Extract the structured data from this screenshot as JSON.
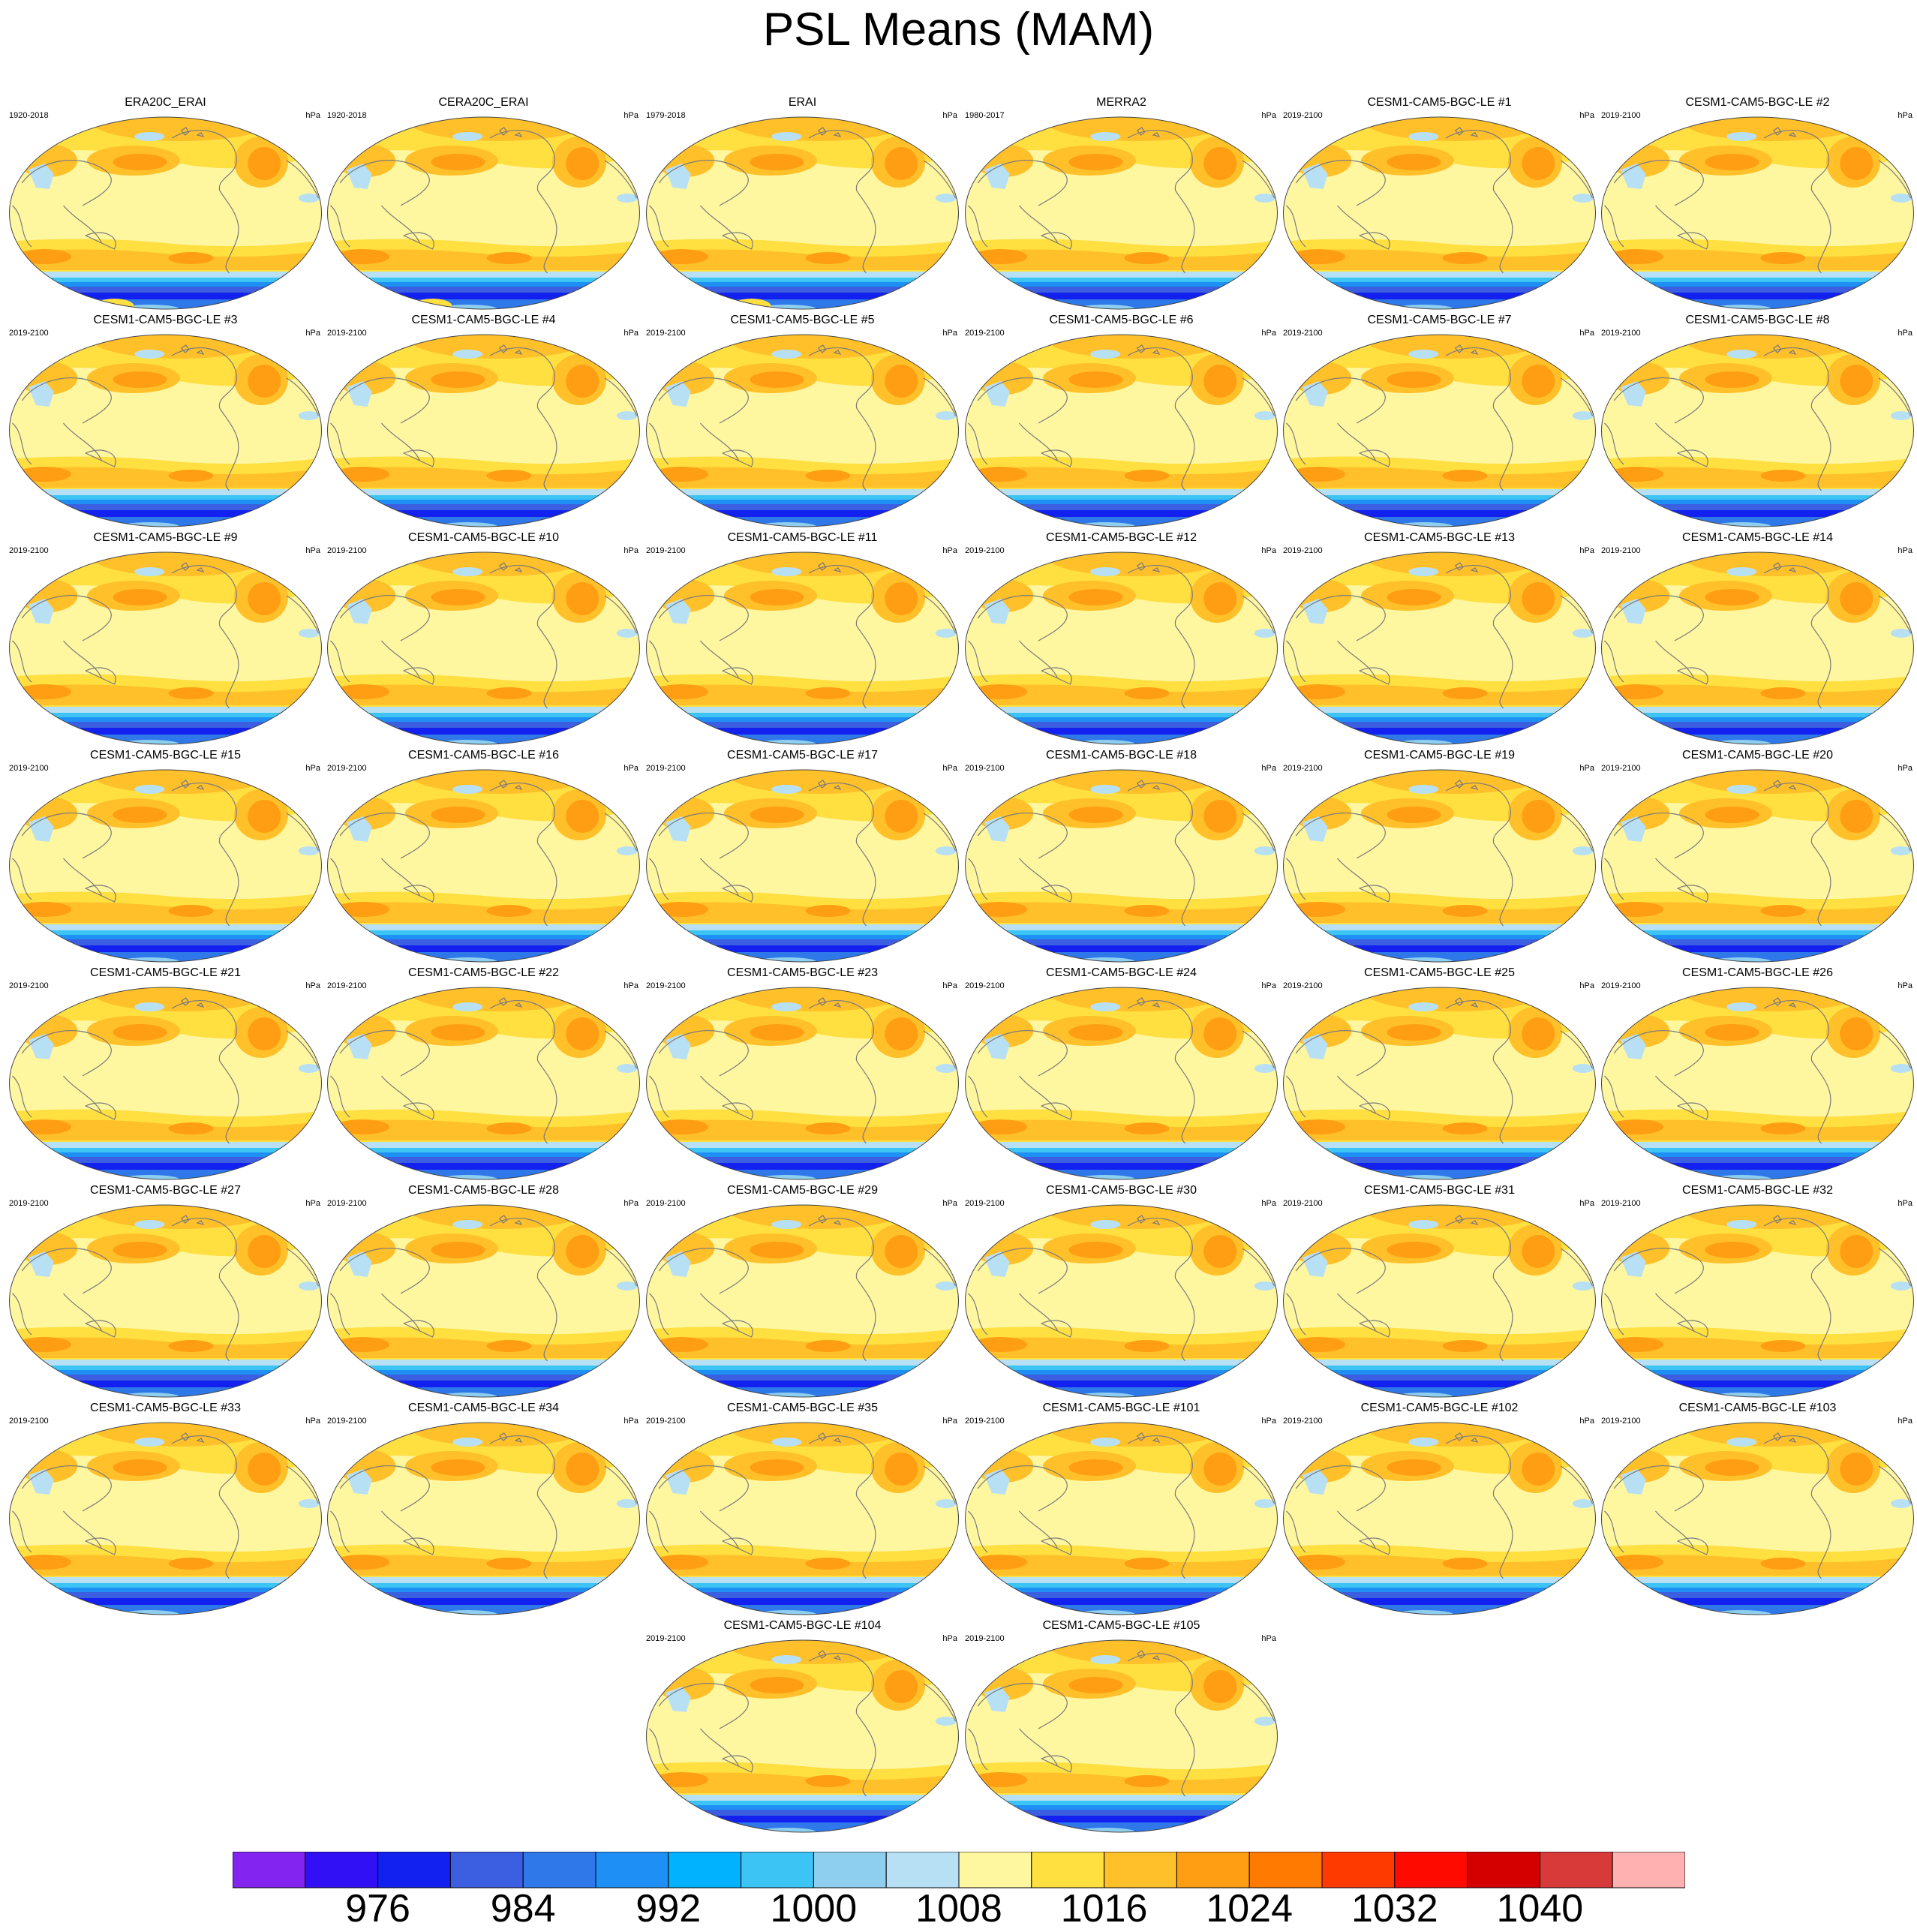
{
  "title": "PSL Means (MAM)",
  "units": "hPa",
  "panels": [
    {
      "title": "ERA20C_ERAI",
      "years": "1920-2018"
    },
    {
      "title": "CERA20C_ERAI",
      "years": "1920-2018"
    },
    {
      "title": "ERAI",
      "years": "1979-2018"
    },
    {
      "title": "MERRA2",
      "years": "1980-2017"
    },
    {
      "title": "CESM1-CAM5-BGC-LE #1",
      "years": "2019-2100"
    },
    {
      "title": "CESM1-CAM5-BGC-LE #2",
      "years": "2019-2100"
    },
    {
      "title": "CESM1-CAM5-BGC-LE #3",
      "years": "2019-2100"
    },
    {
      "title": "CESM1-CAM5-BGC-LE #4",
      "years": "2019-2100"
    },
    {
      "title": "CESM1-CAM5-BGC-LE #5",
      "years": "2019-2100"
    },
    {
      "title": "CESM1-CAM5-BGC-LE #6",
      "years": "2019-2100"
    },
    {
      "title": "CESM1-CAM5-BGC-LE #7",
      "years": "2019-2100"
    },
    {
      "title": "CESM1-CAM5-BGC-LE #8",
      "years": "2019-2100"
    },
    {
      "title": "CESM1-CAM5-BGC-LE #9",
      "years": "2019-2100"
    },
    {
      "title": "CESM1-CAM5-BGC-LE #10",
      "years": "2019-2100"
    },
    {
      "title": "CESM1-CAM5-BGC-LE #11",
      "years": "2019-2100"
    },
    {
      "title": "CESM1-CAM5-BGC-LE #12",
      "years": "2019-2100"
    },
    {
      "title": "CESM1-CAM5-BGC-LE #13",
      "years": "2019-2100"
    },
    {
      "title": "CESM1-CAM5-BGC-LE #14",
      "years": "2019-2100"
    },
    {
      "title": "CESM1-CAM5-BGC-LE #15",
      "years": "2019-2100"
    },
    {
      "title": "CESM1-CAM5-BGC-LE #16",
      "years": "2019-2100"
    },
    {
      "title": "CESM1-CAM5-BGC-LE #17",
      "years": "2019-2100"
    },
    {
      "title": "CESM1-CAM5-BGC-LE #18",
      "years": "2019-2100"
    },
    {
      "title": "CESM1-CAM5-BGC-LE #19",
      "years": "2019-2100"
    },
    {
      "title": "CESM1-CAM5-BGC-LE #20",
      "years": "2019-2100"
    },
    {
      "title": "CESM1-CAM5-BGC-LE #21",
      "years": "2019-2100"
    },
    {
      "title": "CESM1-CAM5-BGC-LE #22",
      "years": "2019-2100"
    },
    {
      "title": "CESM1-CAM5-BGC-LE #23",
      "years": "2019-2100"
    },
    {
      "title": "CESM1-CAM5-BGC-LE #24",
      "years": "2019-2100"
    },
    {
      "title": "CESM1-CAM5-BGC-LE #25",
      "years": "2019-2100"
    },
    {
      "title": "CESM1-CAM5-BGC-LE #26",
      "years": "2019-2100"
    },
    {
      "title": "CESM1-CAM5-BGC-LE #27",
      "years": "2019-2100"
    },
    {
      "title": "CESM1-CAM5-BGC-LE #28",
      "years": "2019-2100"
    },
    {
      "title": "CESM1-CAM5-BGC-LE #29",
      "years": "2019-2100"
    },
    {
      "title": "CESM1-CAM5-BGC-LE #30",
      "years": "2019-2100"
    },
    {
      "title": "CESM1-CAM5-BGC-LE #31",
      "years": "2019-2100"
    },
    {
      "title": "CESM1-CAM5-BGC-LE #32",
      "years": "2019-2100"
    },
    {
      "title": "CESM1-CAM5-BGC-LE #33",
      "years": "2019-2100"
    },
    {
      "title": "CESM1-CAM5-BGC-LE #34",
      "years": "2019-2100"
    },
    {
      "title": "CESM1-CAM5-BGC-LE #35",
      "years": "2019-2100"
    },
    {
      "title": "CESM1-CAM5-BGC-LE #101",
      "years": "2019-2100"
    },
    {
      "title": "CESM1-CAM5-BGC-LE #102",
      "years": "2019-2100"
    },
    {
      "title": "CESM1-CAM5-BGC-LE #103",
      "years": "2019-2100"
    },
    {
      "title": "CESM1-CAM5-BGC-LE #104",
      "years": "2019-2100"
    },
    {
      "title": "CESM1-CAM5-BGC-LE #105",
      "years": "2019-2100"
    }
  ],
  "chart_data": {
    "type": "heatmap",
    "title": "PSL Means (MAM)",
    "units": "hPa",
    "colorbar": {
      "levels": [
        972,
        976,
        980,
        984,
        988,
        992,
        996,
        1000,
        1004,
        1008,
        1012,
        1016,
        1020,
        1024,
        1028,
        1032,
        1036,
        1040
      ],
      "tick_labels": [
        "976",
        "984",
        "992",
        "1000",
        "1008",
        "1016",
        "1024",
        "1032",
        "1040"
      ],
      "colors": [
        "#8424f0",
        "#3110f5",
        "#1220f0",
        "#3c5ee0",
        "#2f78ea",
        "#1e90f5",
        "#00b2ff",
        "#3cc4f5",
        "#8ecff0",
        "#b8e0f5",
        "#fff6a0",
        "#ffe040",
        "#ffc02a",
        "#ff9e12",
        "#ff7a00",
        "#ff3a00",
        "#ff0a00",
        "#d40000",
        "#d83a3a",
        "#ffb0b0"
      ]
    }
  }
}
